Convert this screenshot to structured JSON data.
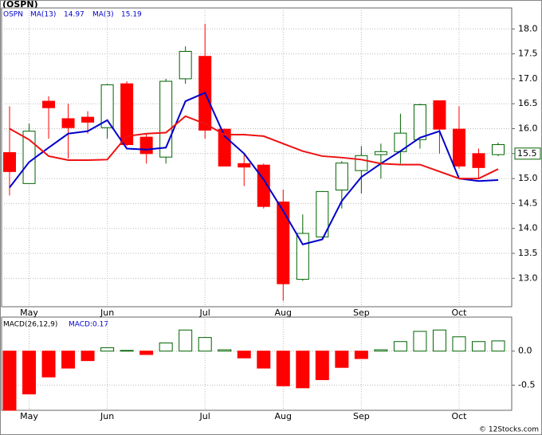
{
  "chart_data": [
    {
      "type": "candlestick",
      "title": "(OSPN)",
      "legend": {
        "symbol": "OSPN",
        "ma13_label": "MA(13)",
        "ma13_value": "14.97",
        "ma3_label": "MA(3)",
        "ma3_value": "15.19"
      },
      "categories": [
        "May",
        null,
        null,
        null,
        "Jun",
        null,
        null,
        null,
        null,
        "Jul",
        null,
        null,
        null,
        "Aug",
        null,
        null,
        null,
        "Sep",
        null,
        null,
        null,
        null,
        "Oct",
        null,
        null,
        null
      ],
      "category_positions": [
        1,
        0,
        0,
        0,
        5,
        0,
        0,
        0,
        0,
        10,
        0,
        0,
        0,
        14,
        0,
        0,
        0,
        18,
        0,
        0,
        0,
        0,
        23,
        0,
        0,
        0
      ],
      "open": [
        15.52,
        14.9,
        16.55,
        16.2,
        16.23,
        16.02,
        16.9,
        15.83,
        15.43,
        17.0,
        17.45,
        15.99,
        15.3,
        15.27,
        14.53,
        12.98,
        13.83,
        14.77,
        15.16,
        15.48,
        15.54,
        15.78,
        16.56,
        15.99,
        15.5,
        15.48
      ],
      "high": [
        16.45,
        16.1,
        16.65,
        16.5,
        16.35,
        16.9,
        16.95,
        15.9,
        17.0,
        17.65,
        18.1,
        16.0,
        15.5,
        15.3,
        14.78,
        14.28,
        14.75,
        15.35,
        15.65,
        15.7,
        16.3,
        16.5,
        16.56,
        16.45,
        15.6,
        15.72
      ],
      "low": [
        14.66,
        14.9,
        15.8,
        15.4,
        15.9,
        15.8,
        15.65,
        15.3,
        15.3,
        16.9,
        15.8,
        15.25,
        14.85,
        14.4,
        12.55,
        12.95,
        13.8,
        14.4,
        14.7,
        15.0,
        15.3,
        15.6,
        15.5,
        15.2,
        15.0,
        15.45
      ],
      "close": [
        15.14,
        15.95,
        16.42,
        16.02,
        16.13,
        16.88,
        15.68,
        15.5,
        16.95,
        17.55,
        15.97,
        15.25,
        15.23,
        14.44,
        12.89,
        13.9,
        14.74,
        15.31,
        15.46,
        15.54,
        15.91,
        16.48,
        15.99,
        15.25,
        15.22,
        15.68
      ],
      "up_color": "#006400",
      "down_color": "#ff0000",
      "series": [
        {
          "name": "MA(13)",
          "color": "#0000cc",
          "values": [
            14.82,
            15.33,
            15.62,
            15.9,
            15.95,
            16.17,
            15.6,
            15.58,
            15.62,
            16.55,
            16.72,
            15.85,
            15.5,
            14.98,
            14.35,
            13.68,
            13.78,
            14.55,
            15.03,
            15.3,
            15.55,
            15.82,
            15.95,
            15.0,
            14.95,
            14.97
          ]
        },
        {
          "name": "MA(3)",
          "color": "#ee1111",
          "values": [
            16.0,
            15.78,
            15.45,
            15.37,
            15.37,
            15.38,
            15.85,
            15.9,
            15.92,
            16.25,
            16.1,
            15.88,
            15.88,
            15.85,
            15.7,
            15.55,
            15.45,
            15.42,
            15.38,
            15.3,
            15.28,
            15.28,
            15.14,
            15.0,
            15.0,
            15.19
          ]
        }
      ],
      "last_price": 15.5,
      "ylim": [
        12.43,
        18.42
      ],
      "yticks": [
        {
          "value": 13,
          "label": "13.0"
        },
        13.5,
        {
          "value": 14,
          "label": "14.0"
        },
        14.5,
        {
          "value": 15,
          "label": "15.0"
        },
        15.5,
        {
          "value": 16,
          "label": "16.0"
        },
        16.5,
        {
          "value": 17,
          "label": "17.0"
        },
        17.5,
        {
          "value": 18,
          "label": "18.0"
        }
      ],
      "grid": true
    },
    {
      "type": "histogram",
      "title": "MACD(26,12,9)",
      "subtitle": "MACD:0.17",
      "values": [
        -0.87,
        -0.63,
        -0.38,
        -0.25,
        -0.14,
        0.05,
        0.01,
        -0.05,
        0.12,
        0.31,
        0.2,
        0.02,
        -0.1,
        -0.25,
        -0.51,
        -0.54,
        -0.42,
        -0.24,
        -0.11,
        0.02,
        0.14,
        0.29,
        0.31,
        0.21,
        0.14,
        0.15
      ],
      "up_color": "#006400",
      "down_color": "#ff0000",
      "ylim": [
        -0.87,
        0.5
      ],
      "yticks": [
        {
          "value": -0.5,
          "label": "-0.5"
        },
        {
          "value": 0,
          "label": "0.0"
        }
      ],
      "grid": true
    },
    {
      "type": "text",
      "credit": "© 12Stocks.com"
    }
  ]
}
